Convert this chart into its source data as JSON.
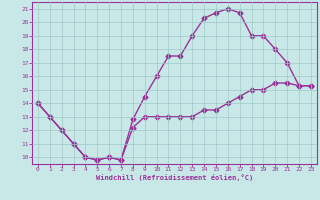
{
  "xlabel": "Windchill (Refroidissement éolien,°C)",
  "background_color": "#c8e8e8",
  "grid_color": "#a0c8c8",
  "line_color": "#993399",
  "xlim": [
    -0.5,
    23.5
  ],
  "ylim": [
    9.5,
    21.5
  ],
  "xticks": [
    0,
    1,
    2,
    3,
    4,
    5,
    6,
    7,
    8,
    9,
    10,
    11,
    12,
    13,
    14,
    15,
    16,
    17,
    18,
    19,
    20,
    21,
    22,
    23
  ],
  "yticks": [
    10,
    11,
    12,
    13,
    14,
    15,
    16,
    17,
    18,
    19,
    20,
    21
  ],
  "line1_x": [
    0,
    1,
    2,
    3,
    4,
    5,
    6,
    7,
    8,
    9,
    10,
    11,
    12,
    13,
    14,
    15,
    16,
    17,
    18,
    19,
    20,
    21,
    22,
    23
  ],
  "line1_y": [
    14,
    13,
    12,
    11,
    10,
    9.8,
    10,
    9.8,
    12.2,
    13,
    13,
    13,
    13,
    13,
    13.5,
    13.5,
    14,
    14.5,
    15,
    15,
    15.5,
    15.5,
    15.3,
    15.3
  ],
  "line2_x": [
    0,
    1,
    2,
    3,
    4,
    5,
    6,
    7,
    8,
    9,
    10,
    11,
    12,
    13,
    14,
    15,
    16,
    17,
    18,
    19,
    20,
    21,
    22,
    23
  ],
  "line2_y": [
    14,
    13,
    12,
    11,
    10,
    9.8,
    10,
    9.8,
    12.8,
    14.5,
    16,
    17.5,
    17.5,
    19,
    20.3,
    20.7,
    21,
    20.7,
    19,
    19,
    18,
    17,
    15.3,
    15.3
  ],
  "marker": "D",
  "markersize": 2.5,
  "linewidth": 1.0
}
